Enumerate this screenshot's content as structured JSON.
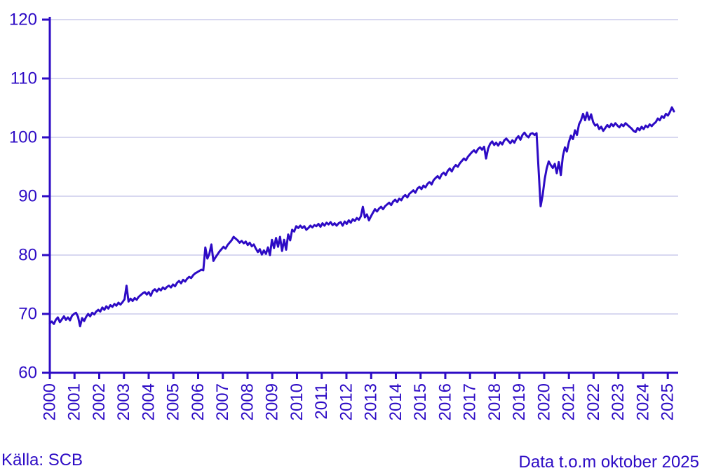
{
  "chart_data": {
    "type": "line",
    "title": "",
    "source_label": "Källa: SCB",
    "footnote": "Data t.o.m oktober 2025",
    "x_unit": "month",
    "x_range": "2000-01 to 2025-10",
    "x_years": [
      "2000",
      "2001",
      "2002",
      "2003",
      "2004",
      "2005",
      "2006",
      "2007",
      "2008",
      "2009",
      "2010",
      "2011",
      "2012",
      "2013",
      "2014",
      "2015",
      "2016",
      "2017",
      "2018",
      "2019",
      "2020",
      "2021",
      "2022",
      "2023",
      "2024",
      "2025"
    ],
    "x_label_rotation_deg": -90,
    "y_ticks": [
      60,
      70,
      80,
      90,
      100,
      110,
      120
    ],
    "ylim": [
      60,
      120
    ],
    "grid": "horizontal",
    "legend": "none",
    "colors": {
      "line": "#2D0BC5",
      "axis": "#2D0BC5",
      "text": "#2D0BC5",
      "grid": "#D8D8F0",
      "background": "#FFFFFF"
    },
    "series": [
      {
        "name": "index",
        "color": "#2D0BC5",
        "values_by_year": {
          "2000": [
            68.4,
            68.7,
            68.3,
            69.0,
            69.4,
            68.6,
            69.1,
            69.6,
            69.0,
            69.4,
            68.9,
            69.7
          ],
          "2001": [
            70.0,
            70.2,
            69.5,
            67.9,
            69.3,
            68.8,
            69.5,
            70.0,
            69.6,
            70.2,
            69.9,
            70.4
          ],
          "2002": [
            70.7,
            70.4,
            71.1,
            70.7,
            71.3,
            70.9,
            71.5,
            71.2,
            71.7,
            71.4,
            71.9,
            71.6
          ],
          "2003": [
            72.0,
            72.5,
            74.8,
            72.1,
            72.6,
            72.2,
            72.7,
            72.4,
            72.9,
            73.2,
            73.5,
            73.7
          ],
          "2004": [
            73.3,
            73.7,
            73.1,
            73.9,
            74.2,
            73.8,
            74.3,
            74.0,
            74.5,
            74.2,
            74.6,
            74.8
          ],
          "2005": [
            74.5,
            75.0,
            74.7,
            75.3,
            75.6,
            75.2,
            75.8,
            75.5,
            76.0,
            76.3,
            76.1,
            76.6
          ],
          "2006": [
            76.9,
            77.1,
            77.3,
            77.5,
            77.4,
            81.3,
            79.4,
            80.2,
            81.8,
            79.0,
            79.6,
            80.1
          ],
          "2007": [
            80.6,
            81.0,
            81.4,
            81.1,
            81.7,
            82.1,
            82.5,
            83.1,
            82.8,
            82.5,
            82.1,
            82.4
          ],
          "2008": [
            82.0,
            82.3,
            81.7,
            82.1,
            81.5,
            81.8,
            81.1,
            80.5,
            81.0,
            80.1,
            80.8,
            80.2
          ],
          "2009": [
            81.3,
            80.0,
            82.6,
            81.2,
            82.9,
            81.4,
            83.1,
            80.7,
            82.6,
            80.9,
            83.5,
            82.5
          ],
          "2010": [
            84.3,
            84.0,
            84.9,
            84.6,
            85.0,
            84.6,
            84.9,
            84.3,
            84.6,
            85.0,
            84.7,
            85.1
          ],
          "2011": [
            84.9,
            85.3,
            84.8,
            85.4,
            85.0,
            85.5,
            85.2,
            85.6,
            85.1,
            85.4,
            85.0,
            85.4
          ],
          "2012": [
            85.6,
            85.0,
            85.7,
            85.3,
            85.9,
            85.5,
            86.1,
            85.8,
            86.3,
            86.0,
            86.6,
            88.2
          ],
          "2013": [
            86.4,
            86.9,
            85.9,
            86.6,
            87.2,
            87.8,
            87.4,
            87.9,
            88.2,
            87.8,
            88.3,
            88.6
          ],
          "2014": [
            88.9,
            88.5,
            89.1,
            89.4,
            89.0,
            89.6,
            89.3,
            89.9,
            90.2,
            89.8,
            90.4,
            90.7
          ],
          "2015": [
            91.0,
            90.6,
            91.3,
            91.6,
            91.2,
            91.8,
            91.5,
            92.1,
            92.4,
            92.0,
            92.7,
            93.1
          ],
          "2016": [
            93.4,
            93.0,
            93.7,
            94.0,
            93.6,
            94.3,
            94.7,
            94.2,
            94.9,
            95.3,
            95.0,
            95.6
          ],
          "2017": [
            96.0,
            96.4,
            96.1,
            96.7,
            97.1,
            97.5,
            97.8,
            97.4,
            98.0,
            98.3,
            97.9,
            98.4
          ],
          "2018": [
            96.4,
            98.1,
            98.9,
            99.3,
            98.7,
            99.1,
            98.6,
            99.2,
            98.8,
            99.5,
            99.8,
            99.4
          ],
          "2019": [
            99.0,
            99.5,
            99.1,
            99.8,
            100.2,
            99.6,
            100.4,
            100.8,
            100.3,
            100.0,
            100.6,
            100.7
          ],
          "2020": [
            100.4,
            100.7,
            94.5,
            88.3,
            90.2,
            92.9,
            94.7,
            95.9,
            95.3,
            94.8,
            95.5,
            93.9
          ],
          "2021": [
            95.8,
            93.6,
            96.8,
            98.3,
            97.6,
            99.2,
            100.3,
            99.7,
            101.2,
            100.4,
            102.2,
            102.9
          ],
          "2022": [
            104.0,
            102.9,
            104.2,
            103.0,
            103.9,
            102.6,
            102.0,
            102.2,
            101.4,
            101.8,
            101.1,
            101.6
          ],
          "2023": [
            102.1,
            101.7,
            102.3,
            101.9,
            102.4,
            102.0,
            101.7,
            102.2,
            101.9,
            102.4,
            102.1,
            101.8
          ],
          "2024": [
            101.5,
            101.1,
            100.9,
            101.6,
            101.2,
            101.8,
            101.4,
            102.0,
            101.7,
            102.2,
            101.9,
            102.3
          ],
          "2025": [
            102.6,
            103.2,
            102.9,
            103.6,
            103.3,
            104.0,
            103.7,
            104.3,
            105.1,
            104.4
          ]
        }
      }
    ]
  }
}
